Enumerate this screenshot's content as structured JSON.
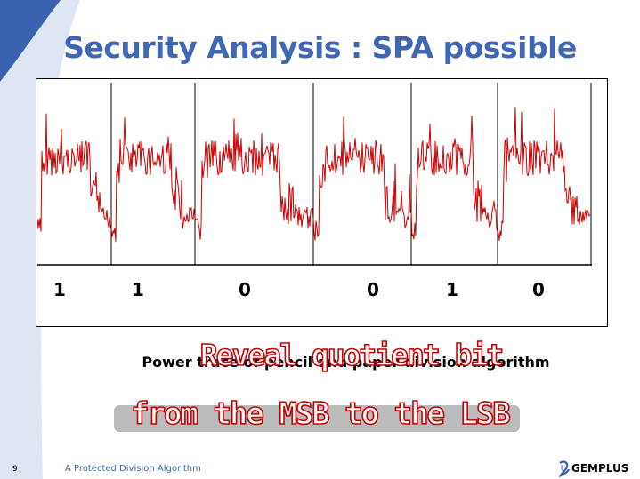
{
  "slide": {
    "title": "Security Analysis : SPA possible",
    "caption": "Power trace of pencil and paper division algorithm",
    "overlay_line1": "Reveal quotient bit",
    "overlay_line2": "from the MSB to the LSB",
    "page_number": "9",
    "footer": "A Protected Division Algorithm",
    "logo": "GEMPLUS",
    "bits": [
      "1",
      "1",
      "0",
      "0",
      "1",
      "0"
    ]
  },
  "colors": {
    "title": "#3f67b4",
    "trace": "#cc0000",
    "overlay_outline": "#c40000",
    "corner_dark": "#3a62b0",
    "corner_light": "#dfe6f3"
  },
  "icons": {
    "logo_mark": "gemplus-logo-icon"
  }
}
